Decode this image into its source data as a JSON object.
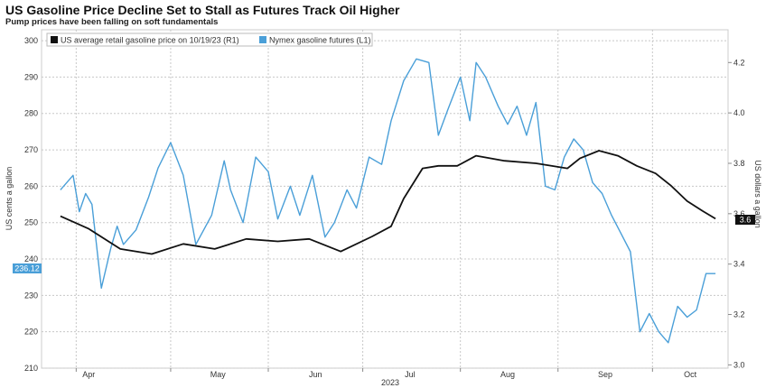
{
  "chart_data": {
    "type": "line",
    "title": "US Gasoline Price Decline Set to Stall as Futures Track Oil Higher",
    "subtitle": "Pump prices have been falling on soft fundamentals",
    "ylabel_left": "US cents a gallon",
    "ylabel_right": "US dollars a gallon",
    "xlabel": "2023",
    "x_ticks": [
      "Apr",
      "May",
      "Jun",
      "Jul",
      "Aug",
      "Sep",
      "Oct"
    ],
    "yleft_ticks": [
      "210",
      "220",
      "230",
      "240",
      "250",
      "260",
      "270",
      "280",
      "290",
      "300"
    ],
    "yright_ticks": [
      "3.0",
      "3.2",
      "3.4",
      "3.6",
      "3.8",
      "4.0",
      "4.2"
    ],
    "ylim_left": [
      210,
      303
    ],
    "ylim_right": [
      2.987,
      4.33
    ],
    "grid": true,
    "legend_position": "top-left",
    "last_value_left": "236.12",
    "last_value_right": "3.6",
    "series": [
      {
        "name": "US average retail gasoline price on 10/19/23 (R1)",
        "axis": "right",
        "color": "#111111",
        "dates": [
          "2023-03-27",
          "2023-04-05",
          "2023-04-15",
          "2023-04-25",
          "2023-05-05",
          "2023-05-15",
          "2023-05-25",
          "2023-06-04",
          "2023-06-14",
          "2023-06-24",
          "2023-07-04",
          "2023-07-10",
          "2023-07-14",
          "2023-07-20",
          "2023-07-25",
          "2023-07-31",
          "2023-08-06",
          "2023-08-15",
          "2023-08-25",
          "2023-09-04",
          "2023-09-08",
          "2023-09-14",
          "2023-09-20",
          "2023-09-26",
          "2023-10-02",
          "2023-10-07",
          "2023-10-12",
          "2023-10-17",
          "2023-10-21"
        ],
        "values": [
          3.59,
          3.54,
          3.46,
          3.44,
          3.48,
          3.46,
          3.5,
          3.49,
          3.5,
          3.45,
          3.51,
          3.55,
          3.66,
          3.78,
          3.79,
          3.79,
          3.83,
          3.81,
          3.8,
          3.78,
          3.82,
          3.85,
          3.83,
          3.79,
          3.76,
          3.71,
          3.65,
          3.61,
          3.58
        ]
      },
      {
        "name": "Nymex gasoline futures (L1)",
        "axis": "left",
        "color": "#4a9fd8",
        "dates": [
          "2023-03-27",
          "2023-03-31",
          "2023-04-02",
          "2023-04-04",
          "2023-04-06",
          "2023-04-09",
          "2023-04-12",
          "2023-04-14",
          "2023-04-16",
          "2023-04-20",
          "2023-04-24",
          "2023-04-27",
          "2023-05-01",
          "2023-05-05",
          "2023-05-09",
          "2023-05-14",
          "2023-05-18",
          "2023-05-20",
          "2023-05-24",
          "2023-05-28",
          "2023-06-01",
          "2023-06-04",
          "2023-06-08",
          "2023-06-11",
          "2023-06-15",
          "2023-06-19",
          "2023-06-22",
          "2023-06-26",
          "2023-06-29",
          "2023-07-03",
          "2023-07-07",
          "2023-07-10",
          "2023-07-14",
          "2023-07-18",
          "2023-07-22",
          "2023-07-25",
          "2023-07-28",
          "2023-08-01",
          "2023-08-04",
          "2023-08-06",
          "2023-08-09",
          "2023-08-13",
          "2023-08-16",
          "2023-08-19",
          "2023-08-22",
          "2023-08-25",
          "2023-08-28",
          "2023-08-31",
          "2023-09-03",
          "2023-09-06",
          "2023-09-09",
          "2023-09-12",
          "2023-09-15",
          "2023-09-18",
          "2023-09-21",
          "2023-09-24",
          "2023-09-27",
          "2023-09-30",
          "2023-10-03",
          "2023-10-06",
          "2023-10-09",
          "2023-10-12",
          "2023-10-15",
          "2023-10-18",
          "2023-10-21"
        ],
        "values": [
          259,
          263,
          253,
          258,
          255,
          232,
          243,
          249,
          244,
          248,
          257,
          265,
          272,
          263,
          244,
          252,
          267,
          259,
          250,
          268,
          264,
          251,
          260,
          252,
          263,
          246,
          250,
          259,
          254,
          268,
          266,
          278,
          289,
          295,
          294,
          274,
          281,
          290,
          278,
          294,
          290,
          282,
          277,
          282,
          274,
          283,
          260,
          259,
          268,
          273,
          270,
          261,
          258,
          252,
          247,
          242,
          220,
          225,
          220,
          217,
          227,
          224,
          226,
          236,
          236
        ]
      }
    ]
  }
}
